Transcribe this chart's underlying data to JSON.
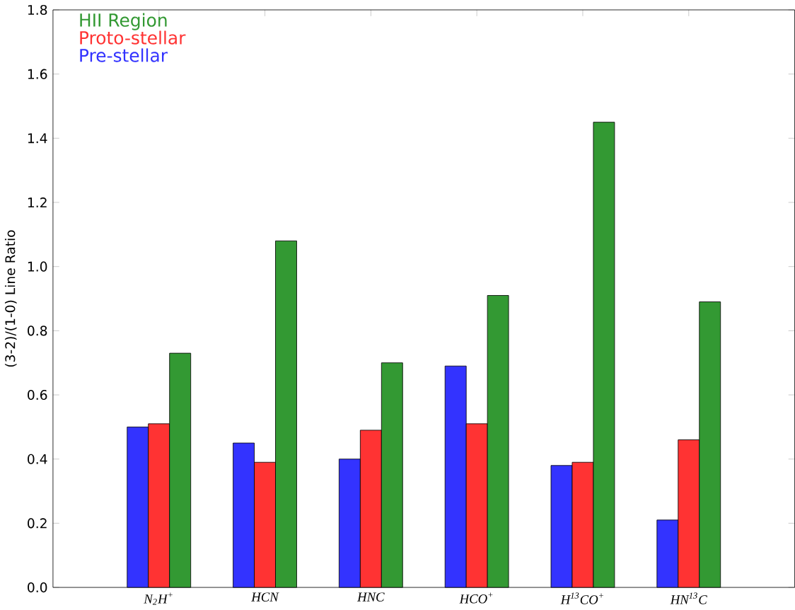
{
  "chart_data": {
    "type": "bar",
    "ylabel": "(3-2)/(1-0) Line Ratio",
    "categories": [
      "N$_{2}$H$^{+}$",
      "HCN",
      "HNC",
      "HCO$^{+}$",
      "H$^{13}$CO$^{+}$",
      "HN$^{13}$C"
    ],
    "series": [
      {
        "name": "Pre-stellar",
        "color": "#3333ff",
        "values": [
          0.5,
          0.45,
          0.4,
          0.69,
          0.38,
          0.21
        ]
      },
      {
        "name": "Proto-stellar",
        "color": "#ff3333",
        "values": [
          0.51,
          0.39,
          0.49,
          0.51,
          0.39,
          0.46
        ]
      },
      {
        "name": "HII Region",
        "color": "#339933",
        "values": [
          0.73,
          1.08,
          0.7,
          0.91,
          1.45,
          0.89
        ]
      }
    ],
    "ylim": [
      0,
      1.8
    ],
    "yticks": [
      {
        "value": 0,
        "label": "0.0"
      },
      0.2,
      0.4,
      0.6,
      0.8,
      {
        "value": 1,
        "label": "1.0"
      },
      1.2,
      1.4,
      1.6,
      1.8
    ],
    "legend": "top left"
  }
}
